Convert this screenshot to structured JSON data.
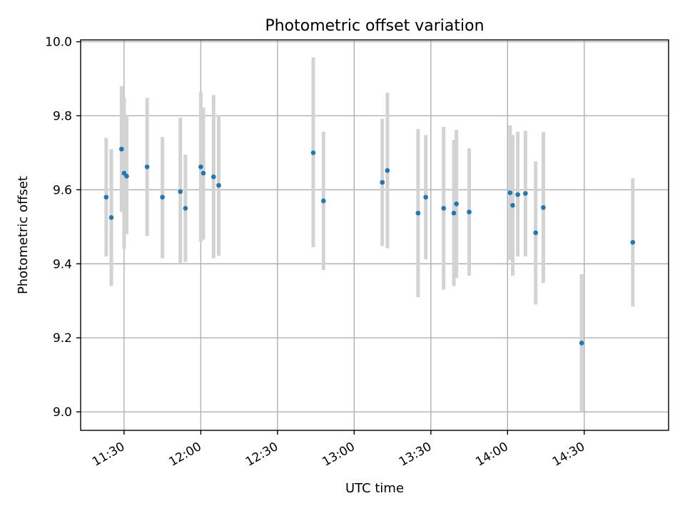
{
  "chart_data": {
    "type": "scatter",
    "title": "Photometric offset variation",
    "xlabel": "UTC time",
    "ylabel": "Photometric offset",
    "xlim": [
      "11:13",
      "15:03"
    ],
    "ylim": [
      8.95,
      10.005
    ],
    "xticks": [
      "11:30",
      "12:00",
      "12:30",
      "13:00",
      "13:30",
      "14:00",
      "14:30"
    ],
    "yticks": [
      "9.0",
      "9.2",
      "9.4",
      "9.6",
      "9.8",
      "10.0"
    ],
    "grid": true,
    "colors": {
      "point": "#1f77b4",
      "errorbar": "#d3d3d3",
      "grid": "#b0b0b0"
    },
    "points": [
      {
        "t": "11:23",
        "y": 9.58,
        "lo": 9.42,
        "hi": 9.74
      },
      {
        "t": "11:25",
        "y": 9.525,
        "lo": 9.34,
        "hi": 9.71
      },
      {
        "t": "11:29",
        "y": 9.71,
        "lo": 9.54,
        "hi": 9.88
      },
      {
        "t": "11:30",
        "y": 9.645,
        "lo": 9.44,
        "hi": 9.85
      },
      {
        "t": "11:31",
        "y": 9.637,
        "lo": 9.48,
        "hi": 9.8
      },
      {
        "t": "11:39",
        "y": 9.662,
        "lo": 9.475,
        "hi": 9.848
      },
      {
        "t": "11:45",
        "y": 9.58,
        "lo": 9.415,
        "hi": 9.743
      },
      {
        "t": "11:52",
        "y": 9.595,
        "lo": 9.4,
        "hi": 9.795
      },
      {
        "t": "11:54",
        "y": 9.55,
        "lo": 9.405,
        "hi": 9.695
      },
      {
        "t": "12:00",
        "y": 9.662,
        "lo": 9.46,
        "hi": 9.865
      },
      {
        "t": "12:01",
        "y": 9.645,
        "lo": 9.465,
        "hi": 9.822
      },
      {
        "t": "12:05",
        "y": 9.635,
        "lo": 9.415,
        "hi": 9.856
      },
      {
        "t": "12:07",
        "y": 9.612,
        "lo": 9.422,
        "hi": 9.802
      },
      {
        "t": "12:44",
        "y": 9.7,
        "lo": 9.445,
        "hi": 9.958
      },
      {
        "t": "12:48",
        "y": 9.57,
        "lo": 9.383,
        "hi": 9.757
      },
      {
        "t": "13:11",
        "y": 9.62,
        "lo": 9.448,
        "hi": 9.792
      },
      {
        "t": "13:13",
        "y": 9.652,
        "lo": 9.442,
        "hi": 9.862
      },
      {
        "t": "13:25",
        "y": 9.537,
        "lo": 9.31,
        "hi": 9.764
      },
      {
        "t": "13:28",
        "y": 9.58,
        "lo": 9.412,
        "hi": 9.748
      },
      {
        "t": "13:35",
        "y": 9.55,
        "lo": 9.33,
        "hi": 9.77
      },
      {
        "t": "13:39",
        "y": 9.537,
        "lo": 9.34,
        "hi": 9.735
      },
      {
        "t": "13:40",
        "y": 9.562,
        "lo": 9.362,
        "hi": 9.762
      },
      {
        "t": "13:45",
        "y": 9.54,
        "lo": 9.368,
        "hi": 9.712
      },
      {
        "t": "14:01",
        "y": 9.592,
        "lo": 9.41,
        "hi": 9.774
      },
      {
        "t": "14:02",
        "y": 9.558,
        "lo": 9.368,
        "hi": 9.748
      },
      {
        "t": "14:04",
        "y": 9.587,
        "lo": 9.42,
        "hi": 9.757
      },
      {
        "t": "14:07",
        "y": 9.59,
        "lo": 9.42,
        "hi": 9.759
      },
      {
        "t": "14:11",
        "y": 9.484,
        "lo": 9.29,
        "hi": 9.677
      },
      {
        "t": "14:14",
        "y": 9.552,
        "lo": 9.348,
        "hi": 9.757
      },
      {
        "t": "14:29",
        "y": 9.186,
        "lo": 9.0,
        "hi": 9.372
      },
      {
        "t": "14:49",
        "y": 9.458,
        "lo": 9.285,
        "hi": 9.631
      }
    ]
  }
}
